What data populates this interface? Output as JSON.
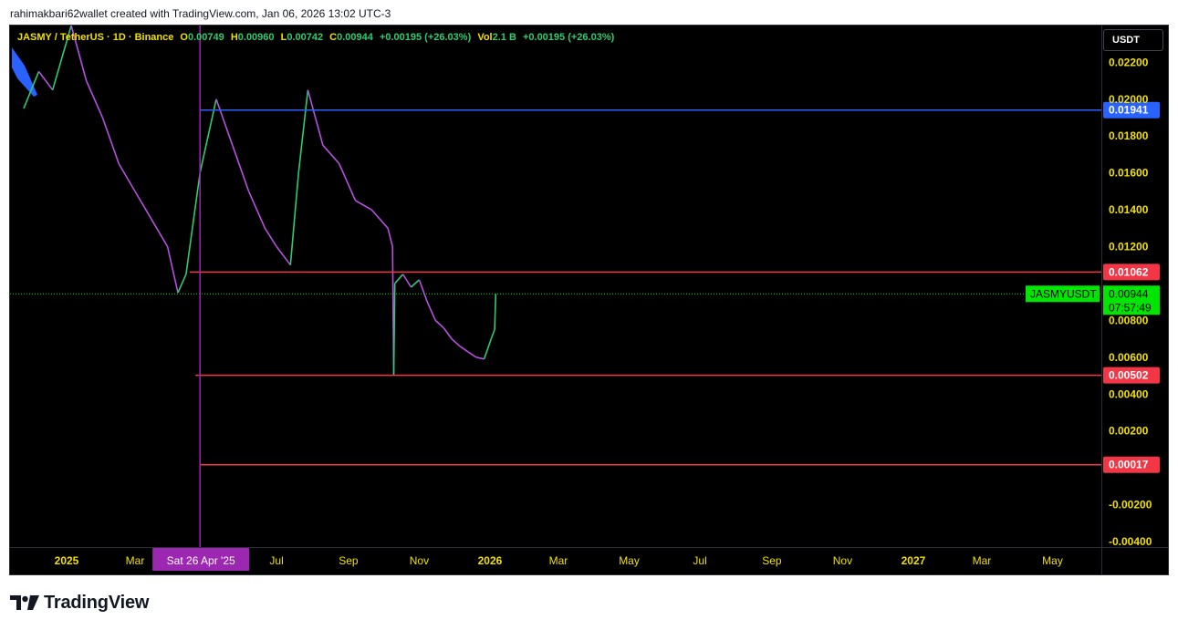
{
  "header": {
    "credit": "rahimakbari62wallet created with TradingView.com, Jan 06, 2026 13:02 UTC-3"
  },
  "legend": {
    "symbol": "JASMY / TetherUS · 1D · Binance",
    "open_label": "O",
    "open": "0.00749",
    "high_label": "H",
    "high": "0.00960",
    "low_label": "L",
    "low": "0.00742",
    "close_label": "C",
    "close": "0.00944",
    "change": "+0.00195 (+26.03%)",
    "vol_label": "Vol",
    "vol": "2.1 B",
    "vol_change": "+0.00195 (+26.03%)"
  },
  "currency_button": "USDT",
  "brand": {
    "name": "TradingView"
  },
  "colors": {
    "background": "#000000",
    "up": "#2ecc71",
    "down": "#b84fe0",
    "blue_line": "#2962ff",
    "red_line": "#f23645",
    "marker": "#9c27b0",
    "axis_text": "#f0e000",
    "last_price": "#00e600"
  },
  "chart_data": {
    "type": "line",
    "title": "JASMY / TetherUS · 1D · Binance",
    "ylim": [
      -0.004,
      0.0235
    ],
    "y_ticks": [
      "0.02200",
      "0.02000",
      "0.01800",
      "0.01600",
      "0.01400",
      "0.01200",
      "0.00800",
      "0.00600",
      "0.00400",
      "0.00200",
      "-0.00200",
      "-0.00400"
    ],
    "y_tick_values": [
      0.022,
      0.02,
      0.018,
      0.016,
      0.014,
      0.012,
      0.008,
      0.006,
      0.004,
      0.002,
      -0.002,
      -0.004
    ],
    "x_ticks": [
      "2025",
      "Mar",
      "Jul",
      "Sep",
      "Nov",
      "2026",
      "Mar",
      "May",
      "Jul",
      "Sep",
      "Nov",
      "2027",
      "Mar",
      "May"
    ],
    "x_tick_dates": [
      "2025-01-01",
      "2025-03-01",
      "2025-07-01",
      "2025-09-01",
      "2025-11-01",
      "2026-01-01",
      "2026-03-01",
      "2026-05-01",
      "2026-07-01",
      "2026-09-01",
      "2026-11-01",
      "2027-01-01",
      "2027-03-01",
      "2027-05-01"
    ],
    "x_tick_bold": [
      true,
      false,
      false,
      false,
      false,
      true,
      false,
      false,
      false,
      false,
      false,
      true,
      false,
      false
    ],
    "series": [
      {
        "x": [
          "2024-11-25",
          "2024-12-08",
          "2024-12-20",
          "2025-01-05",
          "2025-01-18",
          "2025-02-01",
          "2025-02-15",
          "2025-03-01",
          "2025-03-15",
          "2025-03-29",
          "2025-04-07",
          "2025-04-14",
          "2025-04-26",
          "2025-05-10",
          "2025-05-24",
          "2025-06-07",
          "2025-06-21",
          "2025-07-01",
          "2025-07-13",
          "2025-07-20",
          "2025-07-28",
          "2025-08-10",
          "2025-08-24",
          "2025-09-07",
          "2025-09-21",
          "2025-10-05",
          "2025-10-09",
          "2025-10-10",
          "2025-10-11",
          "2025-10-18",
          "2025-10-25",
          "2025-11-01",
          "2025-11-08",
          "2025-11-15",
          "2025-11-22",
          "2025-11-29",
          "2025-12-06",
          "2025-12-13",
          "2025-12-20",
          "2025-12-27",
          "2026-01-02",
          "2026-01-05",
          "2026-01-06"
        ],
        "values": [
          0.0195,
          0.0215,
          0.0205,
          0.024,
          0.021,
          0.019,
          0.0165,
          0.015,
          0.0135,
          0.012,
          0.0095,
          0.0105,
          0.016,
          0.02,
          0.0175,
          0.015,
          0.013,
          0.012,
          0.011,
          0.016,
          0.0205,
          0.0175,
          0.0165,
          0.0145,
          0.014,
          0.013,
          0.012,
          0.005,
          0.01,
          0.0105,
          0.0098,
          0.0102,
          0.009,
          0.008,
          0.0076,
          0.007,
          0.0066,
          0.0063,
          0.006,
          0.0059,
          0.007,
          0.0075,
          0.00944
        ]
      }
    ],
    "hlines": [
      {
        "value": 0.01941,
        "label": "0.01941",
        "color": "#2962ff",
        "start": "2025-04-26"
      },
      {
        "value": 0.01062,
        "label": "0.01062",
        "color": "#f23645",
        "start": "2025-04-17"
      },
      {
        "value": 0.00502,
        "label": "0.00502",
        "color": "#f23645",
        "start": "2025-04-22"
      },
      {
        "value": 0.00017,
        "label": "0.00017",
        "color": "#f23645",
        "start": "2025-04-26"
      }
    ],
    "last_price": {
      "value": 0.00944,
      "label": "0.00944",
      "countdown": "07:57:49",
      "symbol": "JASMYUSDT"
    },
    "vertical_marker": {
      "date": "2025-04-26",
      "label": "Sat 26 Apr '25"
    },
    "grid": false
  }
}
